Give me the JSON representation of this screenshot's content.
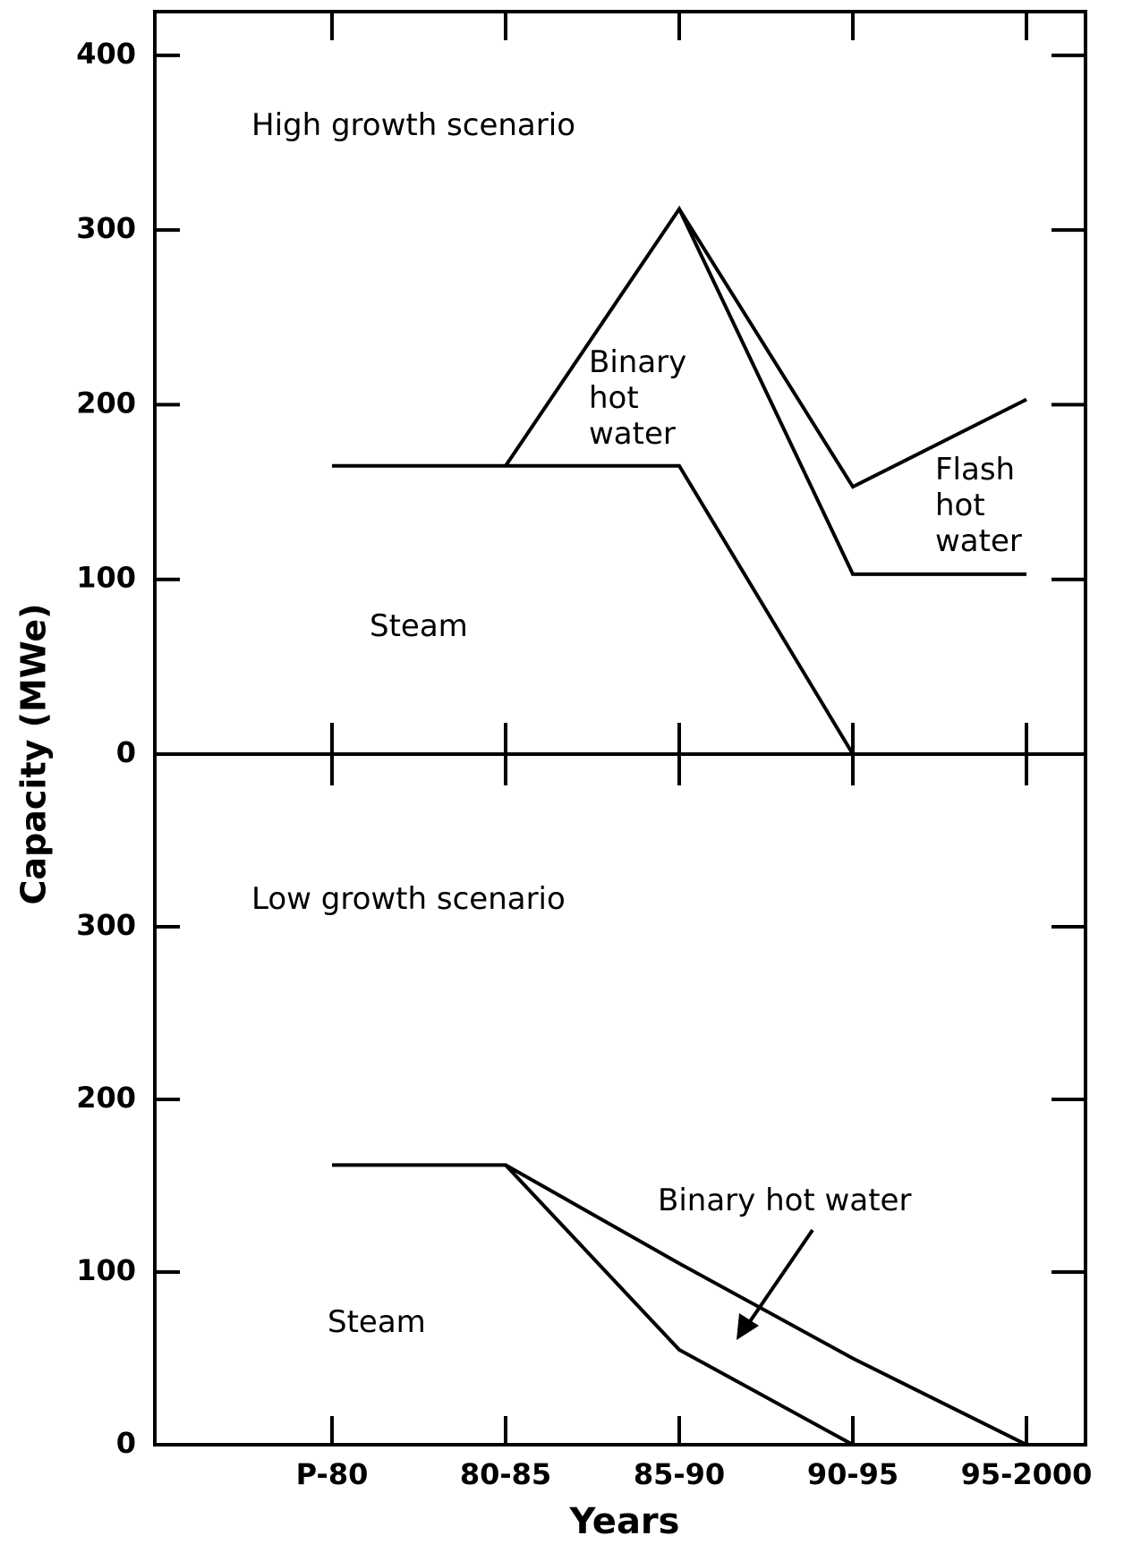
{
  "chart_data": [
    {
      "type": "line",
      "stacked": true,
      "title": "High growth scenario",
      "ylabel": "Capacity (MWe)",
      "ylim": [
        0,
        425
      ],
      "yticks": [
        0,
        100,
        200,
        300,
        400
      ],
      "series": [
        {
          "name": "Steam",
          "color": "#000000",
          "values": [
            165,
            165,
            165,
            0,
            0
          ]
        },
        {
          "name": "Binary hot water",
          "color": "#000000",
          "values": [
            null,
            0,
            147,
            103,
            103
          ]
        },
        {
          "name": "Flash hot water",
          "color": "#000000",
          "values": [
            null,
            null,
            0,
            50,
            100
          ]
        }
      ]
    },
    {
      "type": "line",
      "stacked": true,
      "title": "Low growth scenario",
      "xlabel": "Years",
      "categories": [
        "P-80",
        "80-85",
        "85-90",
        "90-95",
        "95-2000"
      ],
      "ylim": [
        0,
        400
      ],
      "yticks": [
        0,
        100,
        200,
        300
      ],
      "series": [
        {
          "name": "Steam",
          "color": "#000000",
          "values": [
            162,
            162,
            55,
            0,
            0
          ]
        },
        {
          "name": "Binary hot water",
          "color": "#000000",
          "values": [
            null,
            0,
            50,
            50,
            0
          ]
        }
      ]
    }
  ]
}
